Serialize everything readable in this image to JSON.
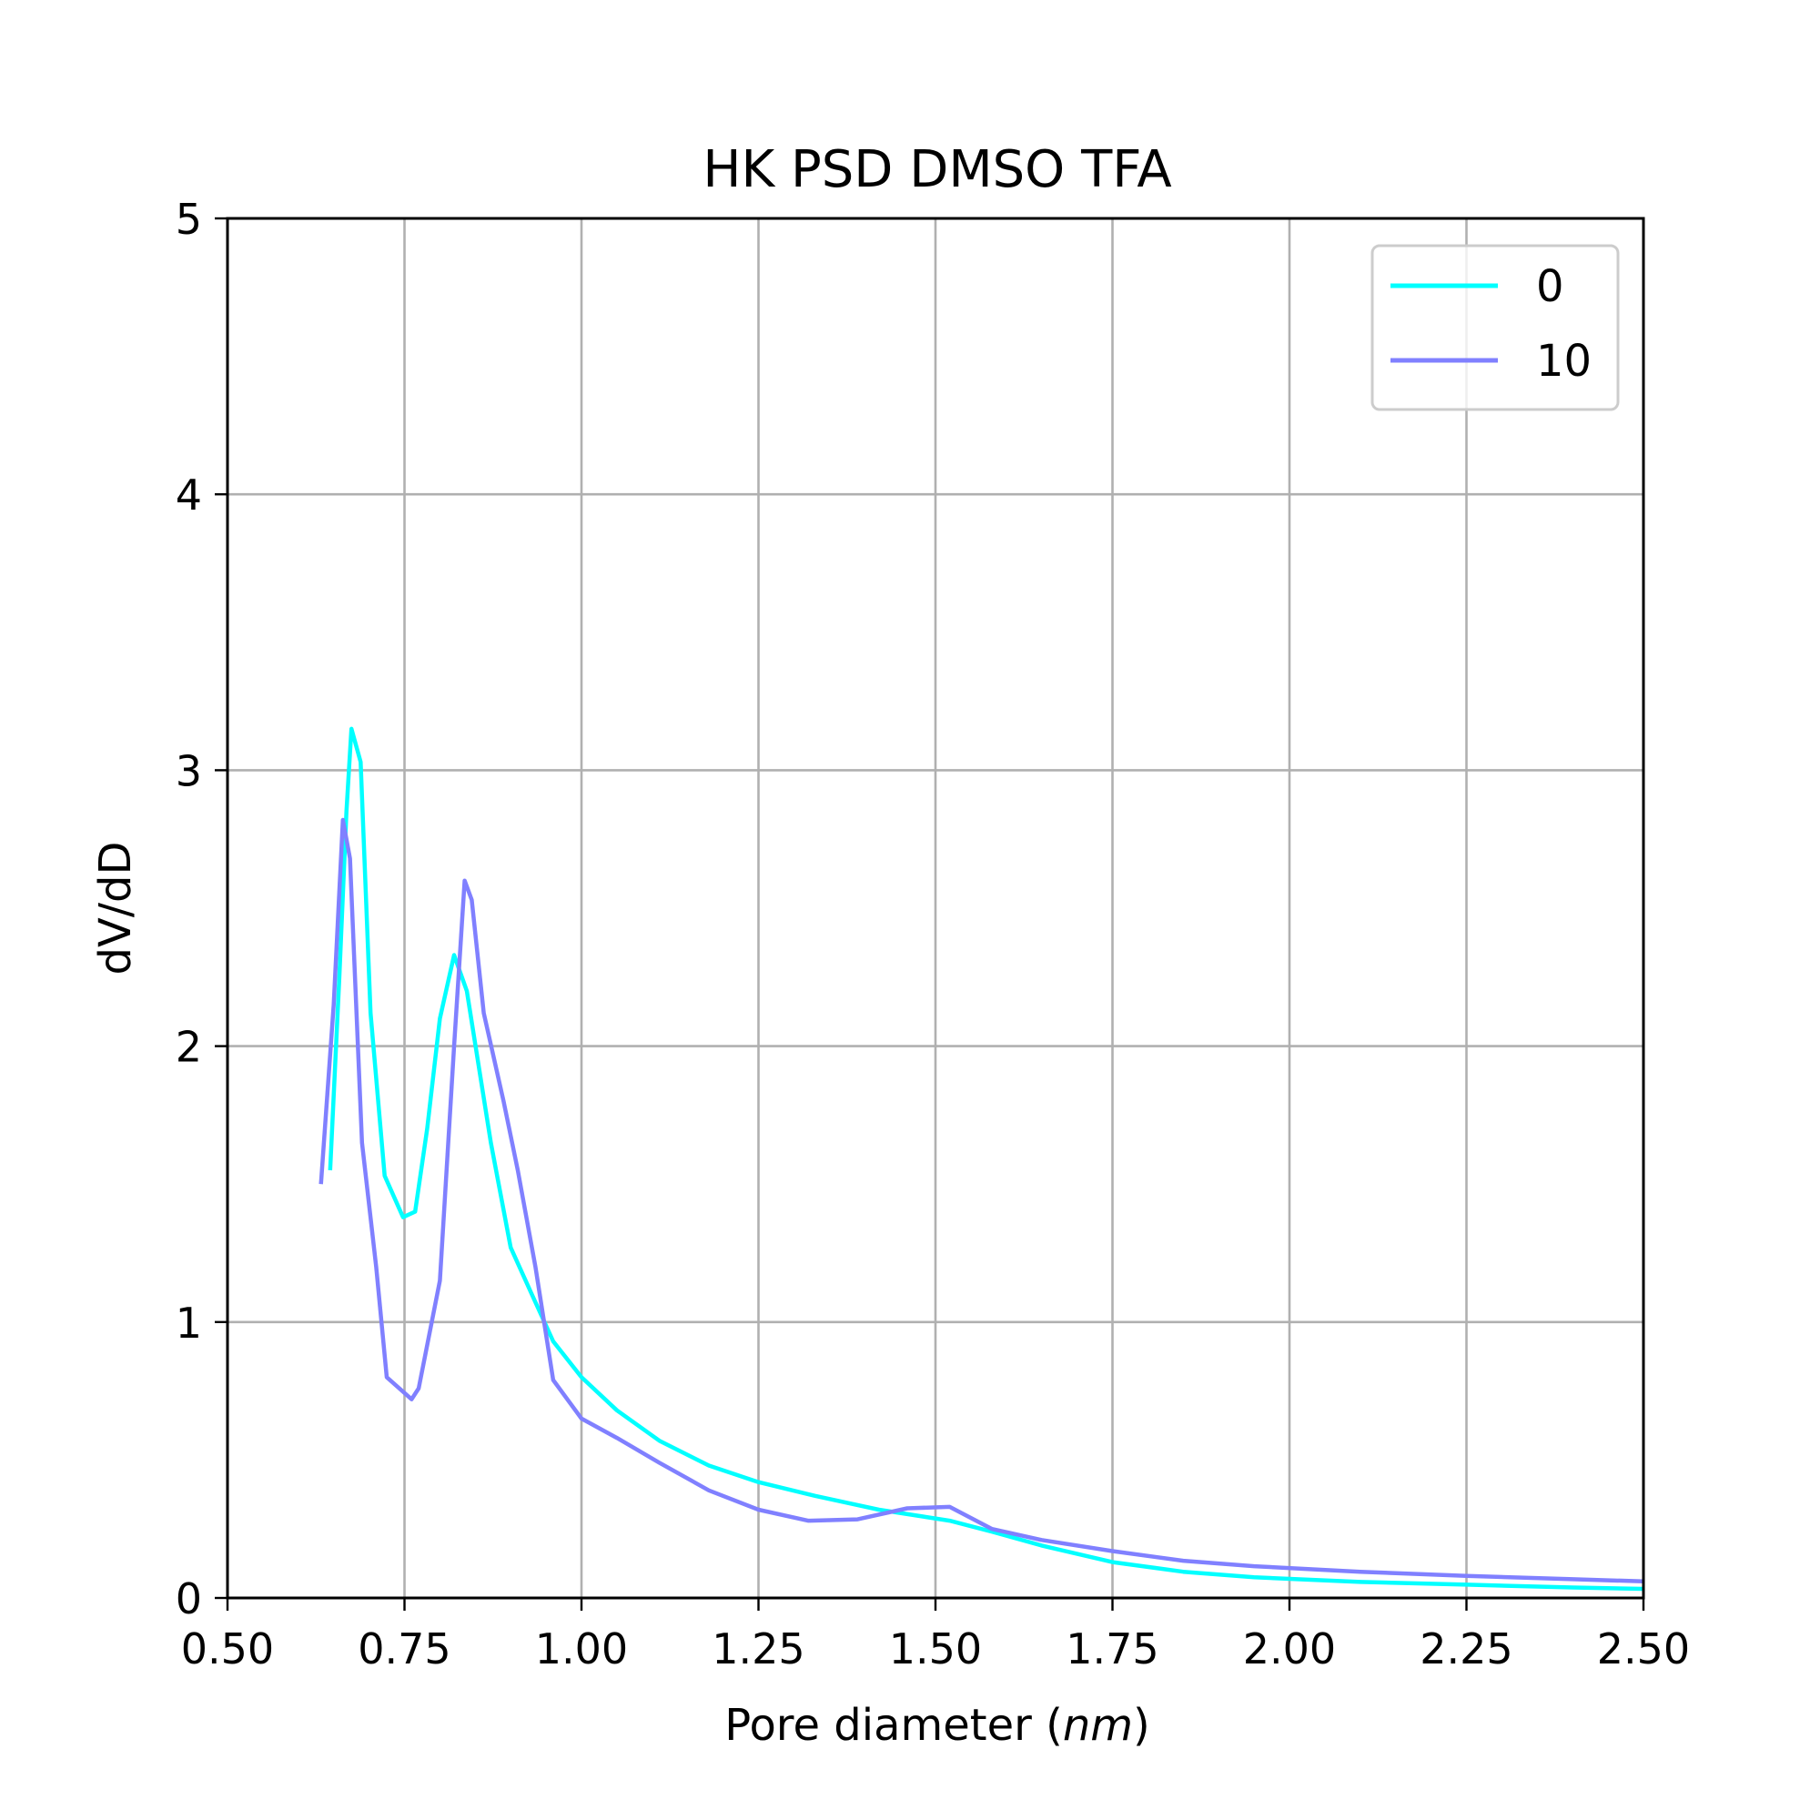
{
  "chart_data": {
    "type": "line",
    "title": "HK PSD DMSO TFA",
    "xlabel_prefix": "Pore diameter (",
    "xlabel_unit": "nm",
    "xlabel_suffix": ")",
    "ylabel": "dV/dD",
    "xlim": [
      0.5,
      2.5
    ],
    "ylim": [
      0,
      5
    ],
    "xticks": [
      "0.50",
      "0.75",
      "1.00",
      "1.25",
      "1.50",
      "1.75",
      "2.00",
      "2.25",
      "2.50"
    ],
    "yticks": [
      "0",
      "1",
      "2",
      "3",
      "4",
      "5"
    ],
    "xtick_values": [
      0.5,
      0.75,
      1.0,
      1.25,
      1.5,
      1.75,
      2.0,
      2.25,
      2.5
    ],
    "ytick_values": [
      0,
      1,
      2,
      3,
      4,
      5
    ],
    "grid": true,
    "legend_position": "top-right",
    "series": [
      {
        "name": "0",
        "color": "#00ffff",
        "x": [
          0.645,
          0.658,
          0.668,
          0.675,
          0.688,
          0.702,
          0.722,
          0.748,
          0.765,
          0.782,
          0.8,
          0.82,
          0.838,
          0.872,
          0.9,
          0.93,
          0.96,
          1.0,
          1.05,
          1.11,
          1.18,
          1.25,
          1.33,
          1.42,
          1.52,
          1.58,
          1.65,
          1.75,
          1.85,
          1.95,
          2.1,
          2.25,
          2.4,
          2.5
        ],
        "y": [
          1.55,
          2.25,
          2.85,
          3.15,
          3.03,
          2.12,
          1.53,
          1.38,
          1.4,
          1.7,
          2.1,
          2.33,
          2.2,
          1.65,
          1.27,
          1.1,
          0.93,
          0.8,
          0.68,
          0.57,
          0.48,
          0.42,
          0.37,
          0.32,
          0.28,
          0.24,
          0.19,
          0.13,
          0.095,
          0.075,
          0.058,
          0.048,
          0.038,
          0.033
        ]
      },
      {
        "name": "10",
        "color": "#8080ff",
        "x": [
          0.632,
          0.65,
          0.663,
          0.673,
          0.69,
          0.71,
          0.725,
          0.76,
          0.77,
          0.8,
          0.82,
          0.835,
          0.845,
          0.862,
          0.89,
          0.91,
          0.935,
          0.96,
          1.0,
          1.05,
          1.11,
          1.18,
          1.25,
          1.32,
          1.39,
          1.46,
          1.52,
          1.58,
          1.65,
          1.75,
          1.85,
          1.95,
          2.1,
          2.25,
          2.4,
          2.5
        ],
        "y": [
          1.5,
          2.15,
          2.82,
          2.68,
          1.65,
          1.2,
          0.8,
          0.72,
          0.76,
          1.15,
          2.0,
          2.6,
          2.53,
          2.12,
          1.8,
          1.55,
          1.2,
          0.79,
          0.65,
          0.58,
          0.49,
          0.39,
          0.32,
          0.28,
          0.285,
          0.325,
          0.33,
          0.25,
          0.21,
          0.17,
          0.135,
          0.115,
          0.095,
          0.08,
          0.068,
          0.06
        ]
      }
    ]
  }
}
